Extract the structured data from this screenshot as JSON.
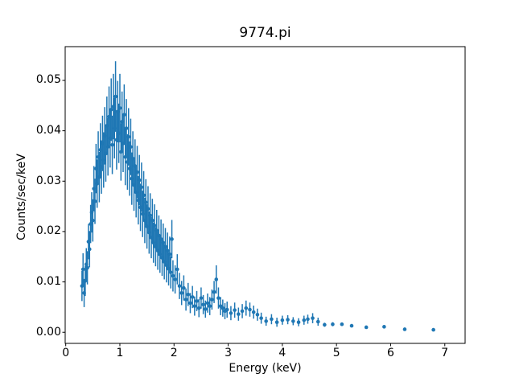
{
  "chart_data": {
    "type": "scatter",
    "subtype": "errorbar-spectrum",
    "title": "9774.pi",
    "xlabel": "Energy (keV)",
    "ylabel": "Counts/sec/keV",
    "xlim": [
      -0.01,
      7.375
    ],
    "ylim": [
      -0.0022,
      0.0567
    ],
    "grid": false,
    "legend": "none",
    "marker_color": "#1f77b4",
    "axis_color": "#000000",
    "x_ticks": [
      "0",
      "1",
      "2",
      "3",
      "4",
      "5",
      "6",
      "7"
    ],
    "x_tick_values": [
      0,
      1,
      2,
      3,
      4,
      5,
      6,
      7
    ],
    "y_ticks": [
      "0.00",
      "0.01",
      "0.02",
      "0.03",
      "0.04",
      "0.05"
    ],
    "y_tick_values": [
      0.0,
      0.01,
      0.02,
      0.03,
      0.04,
      0.05
    ],
    "points_format": "[energy_keV, counts_per_sec_per_keV, error]",
    "points": [
      [
        0.3,
        0.0092,
        0.003
      ],
      [
        0.32,
        0.0125,
        0.0032
      ],
      [
        0.34,
        0.0078,
        0.0028
      ],
      [
        0.36,
        0.0102,
        0.003
      ],
      [
        0.38,
        0.0135,
        0.0032
      ],
      [
        0.4,
        0.0128,
        0.0033
      ],
      [
        0.42,
        0.018,
        0.0035
      ],
      [
        0.44,
        0.0165,
        0.0036
      ],
      [
        0.46,
        0.0215,
        0.0038
      ],
      [
        0.48,
        0.0238,
        0.004
      ],
      [
        0.5,
        0.0222,
        0.0042
      ],
      [
        0.52,
        0.0285,
        0.0045
      ],
      [
        0.54,
        0.026,
        0.0045
      ],
      [
        0.56,
        0.0325,
        0.0049
      ],
      [
        0.58,
        0.0295,
        0.0048
      ],
      [
        0.6,
        0.0348,
        0.0051
      ],
      [
        0.62,
        0.0308,
        0.005
      ],
      [
        0.64,
        0.0362,
        0.0053
      ],
      [
        0.66,
        0.0328,
        0.0053
      ],
      [
        0.68,
        0.0375,
        0.0055
      ],
      [
        0.7,
        0.0342,
        0.0055
      ],
      [
        0.72,
        0.039,
        0.0057
      ],
      [
        0.74,
        0.0355,
        0.0056
      ],
      [
        0.76,
        0.041,
        0.0058
      ],
      [
        0.78,
        0.0368,
        0.0057
      ],
      [
        0.8,
        0.0428,
        0.006
      ],
      [
        0.82,
        0.0385,
        0.0058
      ],
      [
        0.84,
        0.0442,
        0.0062
      ],
      [
        0.86,
        0.0372,
        0.0058
      ],
      [
        0.88,
        0.0448,
        0.0065
      ],
      [
        0.9,
        0.0405,
        0.006
      ],
      [
        0.92,
        0.0468,
        0.007
      ],
      [
        0.94,
        0.0382,
        0.0059
      ],
      [
        0.96,
        0.0438,
        0.0061
      ],
      [
        0.98,
        0.0395,
        0.0059
      ],
      [
        1.0,
        0.0445,
        0.0068
      ],
      [
        1.02,
        0.0358,
        0.0057
      ],
      [
        1.04,
        0.0418,
        0.006
      ],
      [
        1.06,
        0.0375,
        0.0057
      ],
      [
        1.08,
        0.0432,
        0.006
      ],
      [
        1.1,
        0.0348,
        0.0056
      ],
      [
        1.12,
        0.0405,
        0.0058
      ],
      [
        1.14,
        0.0338,
        0.0055
      ],
      [
        1.16,
        0.0388,
        0.0057
      ],
      [
        1.18,
        0.0325,
        0.0054
      ],
      [
        1.2,
        0.0368,
        0.0056
      ],
      [
        1.22,
        0.0305,
        0.0052
      ],
      [
        1.24,
        0.0345,
        0.0054
      ],
      [
        1.26,
        0.0292,
        0.0051
      ],
      [
        1.28,
        0.033,
        0.0053
      ],
      [
        1.3,
        0.0278,
        0.005
      ],
      [
        1.32,
        0.0318,
        0.0052
      ],
      [
        1.34,
        0.0262,
        0.0048
      ],
      [
        1.36,
        0.0302,
        0.005
      ],
      [
        1.38,
        0.0248,
        0.0047
      ],
      [
        1.4,
        0.0288,
        0.0049
      ],
      [
        1.42,
        0.0235,
        0.0046
      ],
      [
        1.44,
        0.0272,
        0.0048
      ],
      [
        1.46,
        0.0222,
        0.0045
      ],
      [
        1.48,
        0.0258,
        0.0046
      ],
      [
        1.5,
        0.021,
        0.0044
      ],
      [
        1.52,
        0.0245,
        0.0045
      ],
      [
        1.54,
        0.0198,
        0.0042
      ],
      [
        1.56,
        0.0232,
        0.0044
      ],
      [
        1.58,
        0.0188,
        0.0041
      ],
      [
        1.6,
        0.0222,
        0.0043
      ],
      [
        1.62,
        0.0178,
        0.004
      ],
      [
        1.64,
        0.0212,
        0.0042
      ],
      [
        1.66,
        0.017,
        0.0039
      ],
      [
        1.68,
        0.0202,
        0.0041
      ],
      [
        1.7,
        0.0162,
        0.0038
      ],
      [
        1.72,
        0.0192,
        0.004
      ],
      [
        1.74,
        0.0155,
        0.0037
      ],
      [
        1.76,
        0.0185,
        0.0039
      ],
      [
        1.78,
        0.0148,
        0.0036
      ],
      [
        1.8,
        0.0178,
        0.0038
      ],
      [
        1.82,
        0.014,
        0.0035
      ],
      [
        1.84,
        0.017,
        0.0037
      ],
      [
        1.86,
        0.0133,
        0.0034
      ],
      [
        1.88,
        0.0162,
        0.0036
      ],
      [
        1.9,
        0.0126,
        0.0033
      ],
      [
        1.92,
        0.0155,
        0.0035
      ],
      [
        1.94,
        0.0119,
        0.0032
      ],
      [
        1.96,
        0.0185,
        0.0038
      ],
      [
        1.98,
        0.0112,
        0.0031
      ],
      [
        2.02,
        0.0105,
        0.0028
      ],
      [
        2.06,
        0.0125,
        0.003
      ],
      [
        2.1,
        0.0092,
        0.0026
      ],
      [
        2.14,
        0.0078,
        0.0024
      ],
      [
        2.18,
        0.0088,
        0.0025
      ],
      [
        2.22,
        0.0065,
        0.0022
      ],
      [
        2.26,
        0.0075,
        0.0023
      ],
      [
        2.3,
        0.0058,
        0.002
      ],
      [
        2.34,
        0.007,
        0.0022
      ],
      [
        2.38,
        0.0052,
        0.0019
      ],
      [
        2.42,
        0.0062,
        0.002
      ],
      [
        2.46,
        0.0048,
        0.0018
      ],
      [
        2.5,
        0.0068,
        0.0021
      ],
      [
        2.54,
        0.0055,
        0.0019
      ],
      [
        2.58,
        0.0046,
        0.0017
      ],
      [
        2.62,
        0.0058,
        0.0019
      ],
      [
        2.66,
        0.0052,
        0.0018
      ],
      [
        2.7,
        0.0065,
        0.002
      ],
      [
        2.74,
        0.008,
        0.0022
      ],
      [
        2.78,
        0.0105,
        0.0028
      ],
      [
        2.82,
        0.0068,
        0.0021
      ],
      [
        2.86,
        0.0052,
        0.0018
      ],
      [
        2.9,
        0.0048,
        0.0017
      ],
      [
        2.94,
        0.0042,
        0.0016
      ],
      [
        2.98,
        0.0045,
        0.0016
      ],
      [
        3.05,
        0.0038,
        0.0014
      ],
      [
        3.12,
        0.0044,
        0.0015
      ],
      [
        3.19,
        0.0036,
        0.0013
      ],
      [
        3.26,
        0.0042,
        0.0014
      ],
      [
        3.33,
        0.0048,
        0.0015
      ],
      [
        3.4,
        0.0045,
        0.0014
      ],
      [
        3.47,
        0.004,
        0.0013
      ],
      [
        3.54,
        0.0035,
        0.0012
      ],
      [
        3.61,
        0.0028,
        0.0011
      ],
      [
        3.7,
        0.0022,
        0.0009
      ],
      [
        3.8,
        0.0026,
        0.001
      ],
      [
        3.9,
        0.002,
        0.0009
      ],
      [
        4.0,
        0.0024,
        0.0009
      ],
      [
        4.1,
        0.0025,
        0.0009
      ],
      [
        4.2,
        0.0022,
        0.0008
      ],
      [
        4.3,
        0.002,
        0.0008
      ],
      [
        4.4,
        0.0024,
        0.0009
      ],
      [
        4.47,
        0.0026,
        0.0009
      ],
      [
        4.56,
        0.0028,
        0.001
      ],
      [
        4.66,
        0.0021,
        0.0008
      ],
      [
        4.78,
        0.0015,
        0.0004
      ],
      [
        4.93,
        0.0016,
        0.0004
      ],
      [
        5.1,
        0.0016,
        0.0003
      ],
      [
        5.28,
        0.0013,
        0.0003
      ],
      [
        5.55,
        0.001,
        0.0003
      ],
      [
        5.88,
        0.0011,
        0.0003
      ],
      [
        6.26,
        0.0006,
        0.0002
      ],
      [
        6.79,
        0.0005,
        0.0002
      ]
    ]
  }
}
